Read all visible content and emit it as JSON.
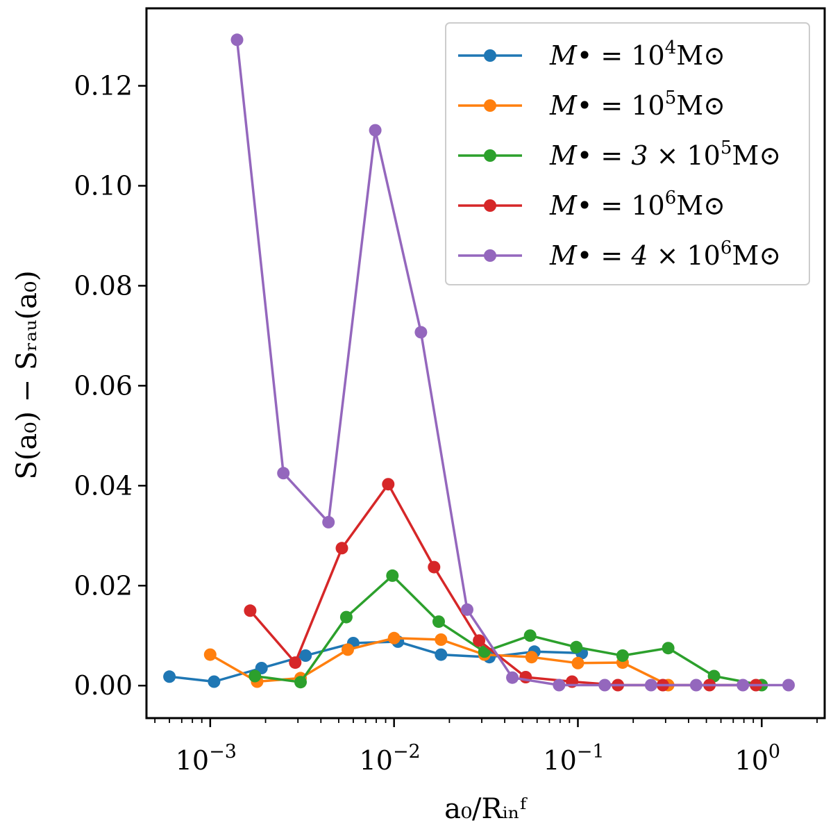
{
  "chart_data": {
    "type": "line",
    "title": "",
    "xlabel": "a₀/Rᵢₙᶠ",
    "ylabel": "S(a₀) − Sᵣₐᵤ(a₀)",
    "xscale": "log",
    "xlim": [
      0.00045,
      2.2
    ],
    "ylim": [
      -0.0065,
      0.1355
    ],
    "x_ticks": [
      0.001,
      0.01,
      0.1,
      1
    ],
    "x_tick_labels": [
      {
        "base": "10",
        "exp": "−3"
      },
      {
        "base": "10",
        "exp": "−2"
      },
      {
        "base": "10",
        "exp": "−1"
      },
      {
        "base": "10",
        "exp": "0"
      }
    ],
    "y_ticks": [
      0.0,
      0.02,
      0.04,
      0.06,
      0.08,
      0.1,
      0.12
    ],
    "y_tick_labels": [
      "0.00",
      "0.02",
      "0.04",
      "0.06",
      "0.08",
      "0.10",
      "0.12"
    ],
    "grid": false,
    "legend_position": "top-right",
    "series": [
      {
        "name": "M• = 10⁴M⊙",
        "legend": {
          "pre": "M• = ",
          "base": "10",
          "exp": "4",
          "post": "M⊙"
        },
        "color": "#1f77b4",
        "x": [
          0.0006,
          0.00105,
          0.0019,
          0.0033,
          0.006,
          0.0105,
          0.018,
          0.033,
          0.058,
          0.105
        ],
        "y": [
          0.0018,
          0.0008,
          0.0035,
          0.006,
          0.0085,
          0.0088,
          0.0062,
          0.0057,
          0.0068,
          0.0065
        ]
      },
      {
        "name": "M• = 10⁵M⊙",
        "legend": {
          "pre": "M• = ",
          "base": "10",
          "exp": "5",
          "post": "M⊙"
        },
        "color": "#ff7f0e",
        "x": [
          0.001,
          0.0018,
          0.0031,
          0.0056,
          0.01,
          0.018,
          0.031,
          0.056,
          0.1,
          0.175,
          0.31
        ],
        "y": [
          0.0062,
          0.0008,
          0.0015,
          0.0072,
          0.0095,
          0.0092,
          0.0062,
          0.0057,
          0.0045,
          0.0046,
          0.0001
        ]
      },
      {
        "name": "M• = 3 × 10⁵M⊙",
        "legend": {
          "pre": "M• = 3 × ",
          "base": "10",
          "exp": "5",
          "post": "M⊙"
        },
        "color": "#2ca02c",
        "x": [
          0.00175,
          0.0031,
          0.0055,
          0.0098,
          0.0175,
          0.031,
          0.055,
          0.098,
          0.175,
          0.31,
          0.55,
          1.0
        ],
        "y": [
          0.0019,
          0.0007,
          0.0137,
          0.022,
          0.0128,
          0.0068,
          0.01,
          0.0077,
          0.006,
          0.0075,
          0.0019,
          0.0001
        ]
      },
      {
        "name": "M• = 10⁶M⊙",
        "legend": {
          "pre": "M• = ",
          "base": "10",
          "exp": "6",
          "post": "M⊙"
        },
        "color": "#d62728",
        "x": [
          0.00165,
          0.0029,
          0.0052,
          0.0093,
          0.0165,
          0.029,
          0.052,
          0.093,
          0.165,
          0.29,
          0.52,
          0.93
        ],
        "y": [
          0.015,
          0.0046,
          0.0275,
          0.0403,
          0.0237,
          0.009,
          0.0017,
          0.0008,
          0.0001,
          0.0001,
          0.0001,
          0.0001
        ]
      },
      {
        "name": "M• = 4 × 10⁶M⊙",
        "legend": {
          "pre": "M• = 4 × ",
          "base": "10",
          "exp": "6",
          "post": "M⊙"
        },
        "color": "#9467bd",
        "x": [
          0.0014,
          0.0025,
          0.0044,
          0.0079,
          0.014,
          0.025,
          0.044,
          0.079,
          0.14,
          0.25,
          0.44,
          0.79,
          1.4
        ],
        "y": [
          0.1292,
          0.0425,
          0.0327,
          0.1111,
          0.0707,
          0.0152,
          0.0016,
          0.0001,
          0.0001,
          0.0001,
          0.0001,
          0.0001,
          0.0001
        ]
      }
    ]
  }
}
